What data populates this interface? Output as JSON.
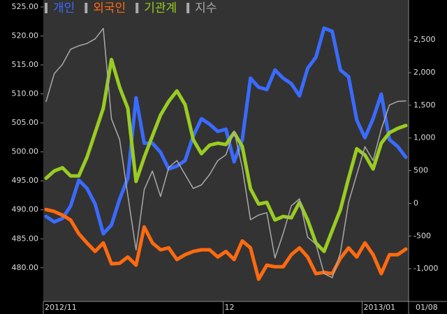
{
  "chart_data": {
    "type": "line",
    "categories": [
      "2012/11",
      null,
      null,
      null,
      null,
      null,
      null,
      null,
      null,
      null,
      null,
      null,
      null,
      null,
      null,
      null,
      null,
      null,
      null,
      null,
      null,
      null,
      "12",
      null,
      null,
      null,
      null,
      null,
      null,
      null,
      null,
      null,
      null,
      null,
      null,
      null,
      null,
      null,
      null,
      "2013/01",
      null,
      null,
      null,
      null,
      null
    ],
    "last_date": "01/08",
    "series": [
      {
        "name": "개인",
        "color": "#3a6bff",
        "axis": "y2",
        "values": [
          -200,
          -285,
          -230,
          -40,
          355,
          230,
          -10,
          -465,
          -330,
          65,
          385,
          1615,
          920,
          920,
          780,
          525,
          570,
          655,
          1030,
          1295,
          1210,
          1100,
          1135,
          635,
          975,
          1915,
          1775,
          1740,
          2040,
          1915,
          1830,
          1645,
          2065,
          2235,
          2680,
          2630,
          2040,
          1935,
          1275,
          1005,
          1295,
          1670,
          975,
          870,
          705
        ]
      },
      {
        "name": "외국인",
        "color": "#ff6a10",
        "axis": "y2",
        "values": [
          -95,
          -125,
          -180,
          -255,
          -465,
          -605,
          -735,
          -605,
          -925,
          -915,
          -820,
          -945,
          -360,
          -605,
          -710,
          -680,
          -860,
          -785,
          -735,
          -710,
          -710,
          -820,
          -735,
          -860,
          -575,
          -680,
          -1160,
          -945,
          -970,
          -970,
          -785,
          -680,
          -820,
          -1075,
          -1055,
          -1075,
          -840,
          -680,
          -820,
          -605,
          -785,
          -1075,
          -785,
          -785,
          -700
        ]
      },
      {
        "name": "기관계",
        "color": "#99cc22",
        "axis": "y2",
        "values": [
          385,
          495,
          545,
          420,
          420,
          705,
          1080,
          1455,
          2200,
          1775,
          1455,
          335,
          705,
          1030,
          1350,
          1560,
          1720,
          1510,
          975,
          760,
          890,
          920,
          900,
          1080,
          870,
          225,
          -10,
          15,
          -255,
          -200,
          -220,
          15,
          -255,
          -605,
          -735,
          -415,
          -95,
          385,
          835,
          740,
          525,
          920,
          1080,
          1145,
          1190
        ]
      },
      {
        "name": "지수",
        "color": "#aaaaaa",
        "values": [
          508.7,
          513.5,
          515.1,
          517.7,
          518.3,
          518.7,
          519.5,
          521.3,
          505.7,
          502.1,
          492.5,
          483.1,
          493.5,
          496.7,
          492.3,
          497.3,
          498.5,
          496.1,
          493.7,
          494.3,
          496.1,
          498.5,
          499.5,
          503.6,
          497.3,
          488.3,
          489.1,
          489.5,
          481.7,
          485.9,
          490.7,
          491.9,
          485.3,
          484.1,
          479.0,
          478.3,
          482.6,
          491.3,
          496.1,
          500.9,
          498.5,
          503.9,
          508.1,
          508.7,
          508.8
        ]
      }
    ],
    "ylim": [
      474.2,
      526.2
    ],
    "yticks": [
      {
        "value": 480,
        "label": "480.00"
      },
      {
        "value": 485,
        "label": "485.00"
      },
      {
        "value": 490,
        "label": "490.00"
      },
      {
        "value": 495,
        "label": "495.00"
      },
      {
        "value": 500,
        "label": "500.00"
      },
      {
        "value": 505,
        "label": "505.00"
      },
      {
        "value": 510,
        "label": "510.00"
      },
      {
        "value": 515,
        "label": "515.00"
      },
      {
        "value": 520,
        "label": "520.00"
      },
      {
        "value": 525,
        "label": "525.00"
      }
    ],
    "y2lim": [
      -1500,
      3110
    ],
    "y2ticks": [
      {
        "value": -1000,
        "label": "-1,000"
      },
      -500,
      0,
      500,
      {
        "value": 1000,
        "label": "1,000"
      },
      {
        "value": 1500,
        "label": "1,500"
      },
      {
        "value": 2000,
        "label": "2,000"
      },
      {
        "value": 2500,
        "label": "2,500"
      }
    ]
  }
}
